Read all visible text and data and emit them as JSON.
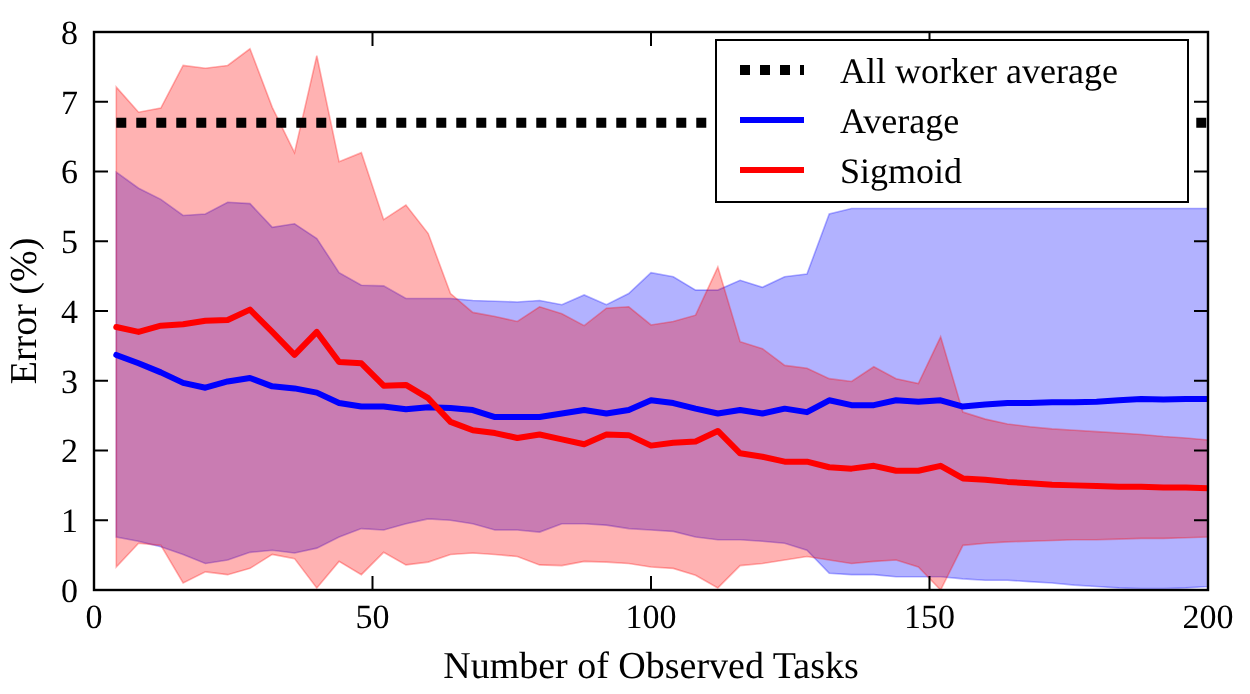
{
  "chart_data": {
    "type": "line",
    "xlabel": "Number of Observed Tasks",
    "ylabel": "Error (%)",
    "x": [
      4,
      8,
      12,
      16,
      20,
      24,
      28,
      32,
      36,
      40,
      44,
      48,
      52,
      56,
      60,
      64,
      68,
      72,
      76,
      80,
      84,
      88,
      92,
      96,
      100,
      104,
      108,
      112,
      116,
      120,
      124,
      128,
      132,
      136,
      140,
      144,
      148,
      152,
      156,
      160,
      164,
      168,
      172,
      176,
      180,
      184,
      188,
      192,
      196,
      200
    ],
    "xlim": [
      0,
      200
    ],
    "xticks": [
      0,
      50,
      100,
      150,
      200
    ],
    "ylim": [
      0,
      8
    ],
    "yticks": [
      0,
      1,
      2,
      3,
      4,
      5,
      6,
      7,
      8
    ],
    "grid": false,
    "legend": "top right",
    "series": [
      {
        "name": "All worker average",
        "color": "#000000",
        "line_style": "dotted",
        "x": [
          4,
          200
        ],
        "values": [
          6.7,
          6.7
        ]
      },
      {
        "name": "Average",
        "color": "#0000ff",
        "line_style": "solid",
        "values": [
          3.37,
          3.25,
          3.12,
          2.97,
          2.9,
          2.99,
          3.04,
          2.92,
          2.89,
          2.83,
          2.68,
          2.63,
          2.63,
          2.59,
          2.62,
          2.61,
          2.58,
          2.48,
          2.48,
          2.48,
          2.53,
          2.58,
          2.53,
          2.58,
          2.72,
          2.68,
          2.6,
          2.53,
          2.58,
          2.53,
          2.6,
          2.55,
          2.72,
          2.65,
          2.65,
          2.72,
          2.7,
          2.72,
          2.63,
          2.66,
          2.68,
          2.68,
          2.69,
          2.69,
          2.7,
          2.72,
          2.74,
          2.73,
          2.74,
          2.74
        ],
        "upper": [
          5.99,
          5.76,
          5.6,
          5.37,
          5.39,
          5.56,
          5.54,
          5.2,
          5.25,
          5.04,
          4.55,
          4.37,
          4.36,
          4.18,
          4.18,
          4.18,
          4.15,
          4.14,
          4.13,
          4.15,
          4.09,
          4.23,
          4.09,
          4.25,
          4.55,
          4.49,
          4.3,
          4.3,
          4.44,
          4.34,
          4.49,
          4.53,
          5.39,
          5.47,
          5.47,
          5.47,
          5.47,
          5.47,
          5.47,
          5.47,
          5.47,
          5.47,
          5.47,
          5.47,
          5.47,
          5.47,
          5.47,
          5.47,
          5.47,
          5.47
        ],
        "lower": [
          0.76,
          0.7,
          0.62,
          0.51,
          0.38,
          0.43,
          0.54,
          0.57,
          0.53,
          0.6,
          0.76,
          0.88,
          0.86,
          0.95,
          1.02,
          1.0,
          0.95,
          0.86,
          0.86,
          0.83,
          0.95,
          0.95,
          0.93,
          0.88,
          0.86,
          0.84,
          0.76,
          0.72,
          0.72,
          0.7,
          0.67,
          0.57,
          0.24,
          0.22,
          0.22,
          0.19,
          0.19,
          0.19,
          0.16,
          0.14,
          0.14,
          0.12,
          0.1,
          0.07,
          0.05,
          0.03,
          0.02,
          0.02,
          0.03,
          0.05
        ]
      },
      {
        "name": "Sigmoid",
        "color": "#ff0000",
        "line_style": "solid",
        "values": [
          3.77,
          3.7,
          3.79,
          3.81,
          3.86,
          3.87,
          4.02,
          3.7,
          3.37,
          3.7,
          3.27,
          3.25,
          2.93,
          2.94,
          2.75,
          2.41,
          2.29,
          2.25,
          2.18,
          2.23,
          2.16,
          2.09,
          2.23,
          2.22,
          2.07,
          2.11,
          2.13,
          2.28,
          1.96,
          1.91,
          1.84,
          1.84,
          1.76,
          1.74,
          1.78,
          1.71,
          1.71,
          1.78,
          1.6,
          1.58,
          1.55,
          1.53,
          1.51,
          1.5,
          1.49,
          1.48,
          1.48,
          1.47,
          1.47,
          1.46
        ],
        "upper": [
          7.21,
          6.85,
          6.91,
          7.52,
          7.48,
          7.52,
          7.76,
          6.92,
          6.27,
          7.66,
          6.14,
          6.27,
          5.31,
          5.52,
          5.11,
          4.25,
          3.98,
          3.92,
          3.85,
          4.06,
          3.96,
          3.79,
          4.04,
          4.06,
          3.8,
          3.85,
          3.94,
          4.63,
          3.56,
          3.46,
          3.22,
          3.18,
          3.03,
          2.99,
          3.2,
          3.03,
          2.96,
          3.63,
          2.55,
          2.45,
          2.38,
          2.34,
          2.31,
          2.29,
          2.27,
          2.25,
          2.23,
          2.2,
          2.18,
          2.15
        ],
        "lower": [
          0.33,
          0.67,
          0.64,
          0.1,
          0.26,
          0.22,
          0.31,
          0.51,
          0.45,
          0.03,
          0.41,
          0.22,
          0.54,
          0.36,
          0.4,
          0.51,
          0.53,
          0.51,
          0.48,
          0.36,
          0.35,
          0.41,
          0.4,
          0.38,
          0.33,
          0.31,
          0.21,
          0.03,
          0.35,
          0.38,
          0.43,
          0.48,
          0.43,
          0.38,
          0.41,
          0.43,
          0.33,
          0.0,
          0.64,
          0.67,
          0.69,
          0.7,
          0.71,
          0.72,
          0.72,
          0.73,
          0.74,
          0.74,
          0.75,
          0.76
        ]
      }
    ]
  }
}
